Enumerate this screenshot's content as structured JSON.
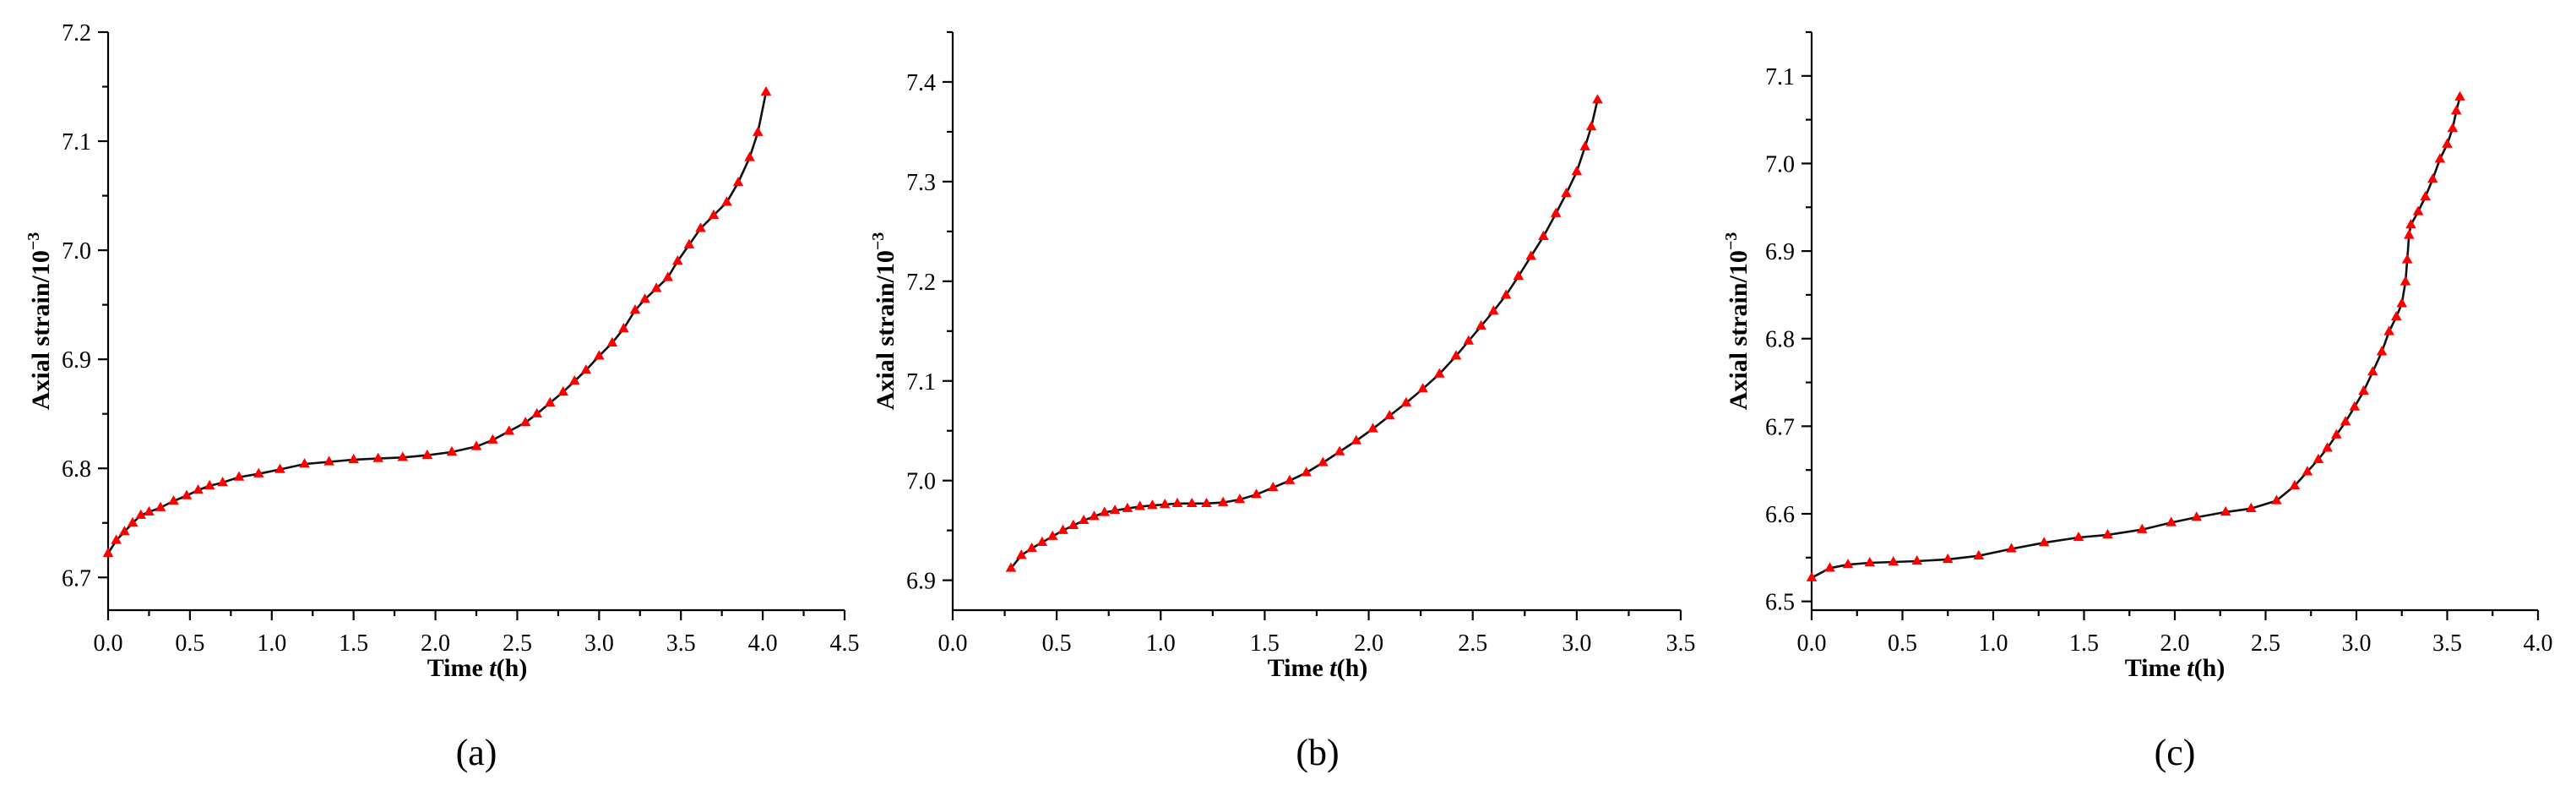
{
  "figure": {
    "marker_color": "#ff0000",
    "line_color": "#111111"
  },
  "chart_data": [
    {
      "type": "line",
      "panel_label": "(a)",
      "xlabel_prefix": "Time ",
      "xlabel_var": "t",
      "xlabel_suffix": "(h)",
      "ylabel": "Axial strain/10",
      "ylabel_exp": "−3",
      "xlim": [
        0.0,
        4.5
      ],
      "ylim": [
        6.67,
        7.2
      ],
      "xticks": [
        0.0,
        0.5,
        1.0,
        1.5,
        2.0,
        2.5,
        3.0,
        3.5,
        4.0,
        4.5
      ],
      "xtick_labels": [
        "0.0",
        "0.5",
        "1.0",
        "1.5",
        "2.0",
        "2.5",
        "3.0",
        "3.5",
        "4.0",
        "4.5"
      ],
      "yticks": [
        6.7,
        6.8,
        6.9,
        7.0,
        7.1,
        7.2
      ],
      "ytick_labels": [
        "6.7",
        "6.8",
        "6.9",
        "7.0",
        "7.1",
        "7.2"
      ],
      "series": [
        {
          "x": [
            0.0,
            0.05,
            0.1,
            0.15,
            0.2,
            0.25,
            0.32,
            0.4,
            0.48,
            0.55,
            0.62,
            0.7,
            0.8,
            0.92,
            1.05,
            1.2,
            1.35,
            1.5,
            1.65,
            1.8,
            1.95,
            2.1,
            2.25,
            2.35,
            2.45,
            2.55,
            2.62,
            2.7,
            2.78,
            2.85,
            2.92,
            3.0,
            3.08,
            3.15,
            3.22,
            3.28,
            3.35,
            3.42,
            3.48,
            3.55,
            3.62,
            3.7,
            3.78,
            3.85,
            3.92,
            3.97,
            4.02
          ],
          "y": [
            6.722,
            6.734,
            6.742,
            6.75,
            6.757,
            6.76,
            6.764,
            6.77,
            6.775,
            6.78,
            6.784,
            6.787,
            6.792,
            6.795,
            6.799,
            6.804,
            6.806,
            6.808,
            6.809,
            6.81,
            6.812,
            6.815,
            6.82,
            6.826,
            6.834,
            6.842,
            6.85,
            6.86,
            6.87,
            6.88,
            6.89,
            6.903,
            6.915,
            6.928,
            6.945,
            6.955,
            6.965,
            6.975,
            6.99,
            7.005,
            7.02,
            7.032,
            7.044,
            7.062,
            7.085,
            7.108,
            7.145
          ]
        }
      ]
    },
    {
      "type": "line",
      "panel_label": "(b)",
      "xlabel_prefix": "Time ",
      "xlabel_var": "t",
      "xlabel_suffix": "(h)",
      "ylabel": "Axial strain/10",
      "ylabel_exp": "−3",
      "xlim": [
        0.0,
        3.5
      ],
      "ylim": [
        6.87,
        7.45
      ],
      "xticks": [
        0.0,
        0.5,
        1.0,
        1.5,
        2.0,
        2.5,
        3.0,
        3.5
      ],
      "xtick_labels": [
        "0.0",
        "0.5",
        "1.0",
        "1.5",
        "2.0",
        "2.5",
        "3.0",
        "3.5"
      ],
      "yticks": [
        6.9,
        7.0,
        7.1,
        7.2,
        7.3,
        7.4
      ],
      "ytick_labels": [
        "6.9",
        "7.0",
        "7.1",
        "7.2",
        "7.3",
        "7.4"
      ],
      "series": [
        {
          "x": [
            0.28,
            0.33,
            0.38,
            0.43,
            0.48,
            0.53,
            0.58,
            0.63,
            0.68,
            0.73,
            0.78,
            0.84,
            0.9,
            0.96,
            1.02,
            1.08,
            1.15,
            1.22,
            1.3,
            1.38,
            1.46,
            1.54,
            1.62,
            1.7,
            1.78,
            1.86,
            1.94,
            2.02,
            2.1,
            2.18,
            2.26,
            2.34,
            2.42,
            2.48,
            2.54,
            2.6,
            2.66,
            2.72,
            2.78,
            2.84,
            2.9,
            2.95,
            3.0,
            3.04,
            3.07,
            3.1
          ],
          "y": [
            6.912,
            6.925,
            6.932,
            6.938,
            6.944,
            6.95,
            6.955,
            6.96,
            6.964,
            6.968,
            6.97,
            6.972,
            6.974,
            6.975,
            6.976,
            6.977,
            6.977,
            6.977,
            6.978,
            6.981,
            6.986,
            6.993,
            7.0,
            7.008,
            7.018,
            7.029,
            7.04,
            7.052,
            7.065,
            7.078,
            7.092,
            7.107,
            7.125,
            7.14,
            7.155,
            7.17,
            7.186,
            7.205,
            7.225,
            7.245,
            7.268,
            7.288,
            7.31,
            7.335,
            7.355,
            7.382
          ]
        }
      ]
    },
    {
      "type": "line",
      "panel_label": "(c)",
      "xlabel_prefix": "Time ",
      "xlabel_var": "t",
      "xlabel_suffix": "(h)",
      "ylabel": "Axial strain/10",
      "ylabel_exp": "−3",
      "xlim": [
        0.0,
        4.0
      ],
      "ylim": [
        6.49,
        7.15
      ],
      "xticks": [
        0.0,
        0.5,
        1.0,
        1.5,
        2.0,
        2.5,
        3.0,
        3.5,
        4.0
      ],
      "xtick_labels": [
        "0.0",
        "0.5",
        "1.0",
        "1.5",
        "2.0",
        "2.5",
        "3.0",
        "3.5",
        "4.0"
      ],
      "yticks": [
        6.5,
        6.6,
        6.7,
        6.8,
        6.9,
        7.0,
        7.1
      ],
      "ytick_labels": [
        "6.5",
        "6.6",
        "6.7",
        "6.8",
        "6.9",
        "7.0",
        "7.1"
      ],
      "series": [
        {
          "x": [
            0.0,
            0.1,
            0.2,
            0.32,
            0.45,
            0.58,
            0.75,
            0.92,
            1.1,
            1.28,
            1.47,
            1.63,
            1.82,
            1.98,
            2.12,
            2.28,
            2.42,
            2.56,
            2.66,
            2.73,
            2.79,
            2.84,
            2.89,
            2.94,
            2.99,
            3.04,
            3.09,
            3.14,
            3.18,
            3.22,
            3.25,
            3.27,
            3.28,
            3.29,
            3.3,
            3.34,
            3.38,
            3.42,
            3.46,
            3.5,
            3.53,
            3.55,
            3.57
          ],
          "y": [
            6.527,
            6.538,
            6.542,
            6.544,
            6.545,
            6.546,
            6.548,
            6.552,
            6.56,
            6.567,
            6.573,
            6.576,
            6.582,
            6.59,
            6.596,
            6.602,
            6.606,
            6.615,
            6.632,
            6.648,
            6.662,
            6.675,
            6.69,
            6.705,
            6.722,
            6.74,
            6.762,
            6.785,
            6.808,
            6.825,
            6.84,
            6.865,
            6.89,
            6.918,
            6.93,
            6.945,
            6.962,
            6.982,
            7.005,
            7.022,
            7.04,
            7.06,
            7.076
          ]
        }
      ]
    }
  ]
}
